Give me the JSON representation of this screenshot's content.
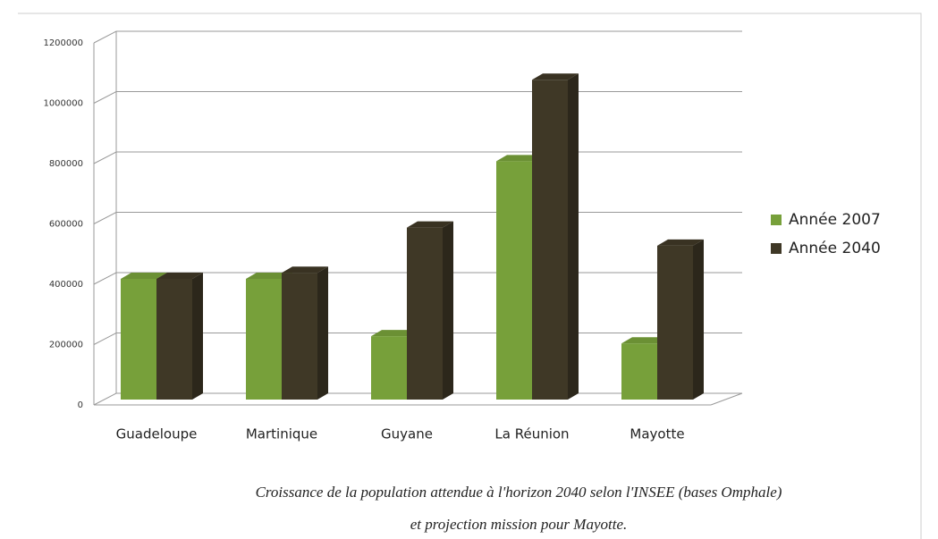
{
  "chart_data": {
    "type": "bar3d",
    "categories": [
      "Guadeloupe",
      "Martinique",
      "Guyane",
      "La Réunion",
      "Mayotte"
    ],
    "series": [
      {
        "name": "Année 2007",
        "color": "#77a03a",
        "values": [
          400000,
          400000,
          210000,
          790000,
          186000
        ]
      },
      {
        "name": "Année 2040",
        "color": "#3f3826",
        "values": [
          400000,
          420000,
          570000,
          1060000,
          510000
        ]
      }
    ],
    "ylim": [
      0,
      1200000
    ],
    "yticks": [
      0,
      200000,
      400000,
      600000,
      800000,
      1000000,
      1200000
    ],
    "grid": true,
    "legend": "right",
    "caption": [
      "Croissance de la population attendue à l'horizon 2040 selon l'INSEE (bases Omphale)",
      "et projection mission pour Mayotte."
    ]
  }
}
